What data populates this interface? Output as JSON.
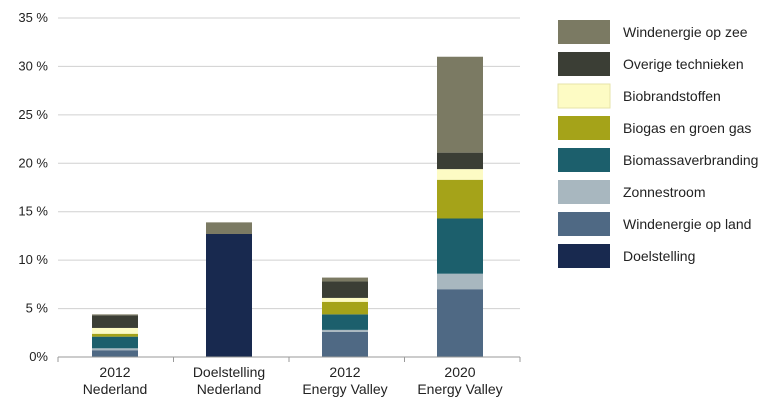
{
  "chart_data": {
    "type": "bar",
    "stacked": true,
    "categories": [
      [
        "2012",
        "Nederland"
      ],
      [
        "Doelstelling",
        "Nederland"
      ],
      [
        "2012",
        "Energy Valley"
      ],
      [
        "2020",
        "Energy Valley"
      ]
    ],
    "ylim": [
      0,
      35
    ],
    "yticks": [
      "0%",
      "5 %",
      "10 %",
      "15 %",
      "20 %",
      "25 %",
      "30 %",
      "35 %"
    ],
    "grid": true,
    "legend_position": "right",
    "series": [
      {
        "name": "Doelstelling",
        "color": "#18294f",
        "values": [
          0,
          12.7,
          0,
          0
        ]
      },
      {
        "name": "Windenergie op land",
        "color": "#4f6984",
        "values": [
          0.7,
          0,
          2.6,
          7.0
        ]
      },
      {
        "name": "Zonnestroom",
        "color": "#a8b7bf",
        "values": [
          0.2,
          0,
          0.2,
          1.6
        ]
      },
      {
        "name": "Biomassaverbranding",
        "color": "#1c5f6c",
        "values": [
          1.2,
          0,
          1.6,
          5.7
        ]
      },
      {
        "name": "Biogas en groen gas",
        "color": "#a5a319",
        "values": [
          0.3,
          0,
          1.3,
          4.0
        ]
      },
      {
        "name": "Biobrandstoffen",
        "color": "#fdfbc4",
        "values": [
          0.6,
          0,
          0.4,
          1.1
        ]
      },
      {
        "name": "Overige technieken",
        "color": "#3b3e35",
        "values": [
          1.3,
          0,
          1.7,
          1.7
        ]
      },
      {
        "name": "Windenergie op zee",
        "color": "#7b7a63",
        "values": [
          0.1,
          1.2,
          0.4,
          9.9
        ]
      }
    ],
    "legend_order": [
      "Windenergie op zee",
      "Overige technieken",
      "Biobrandstoffen",
      "Biogas en groen gas",
      "Biomassaverbranding",
      "Zonnestroom",
      "Windenergie op land",
      "Doelstelling"
    ]
  }
}
